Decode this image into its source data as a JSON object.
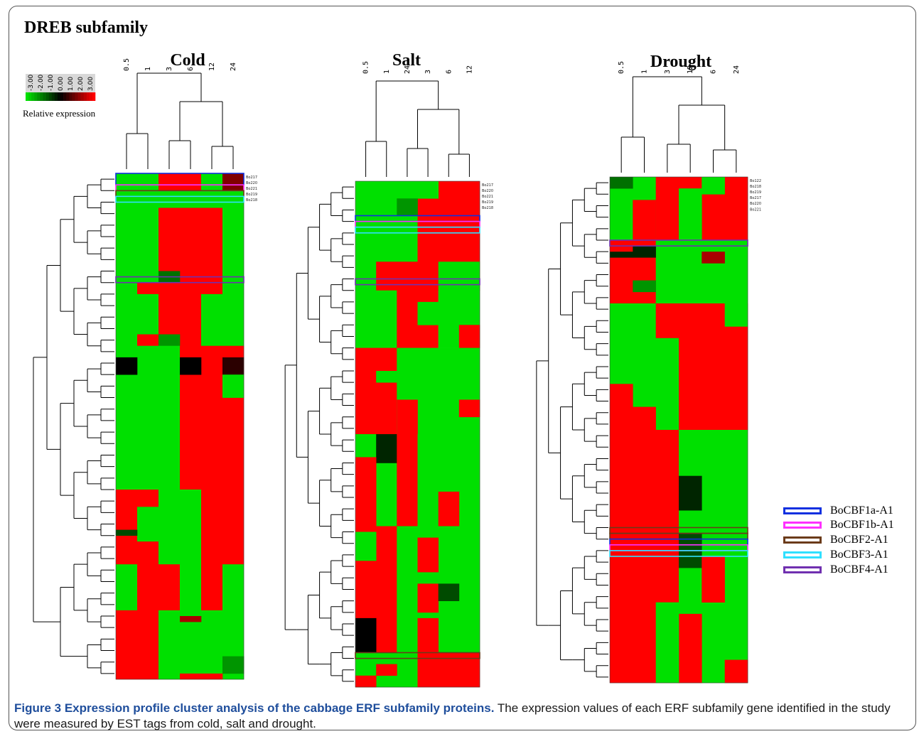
{
  "panel_title": "DREB subfamily",
  "scale": {
    "ticks": [
      "-3.00",
      "-2.00",
      "-1.00",
      "0.00",
      "1.00",
      "2.00",
      "3.00"
    ],
    "label": "Relative expression",
    "colors": {
      "low": "#00e000",
      "mid": "#000000",
      "high": "#ff0000"
    }
  },
  "legend": [
    {
      "label": "BoCBF1a-A1",
      "color": "#1030e0"
    },
    {
      "label": "BoCBF1b-A1",
      "color": "#ff30ff"
    },
    {
      "label": "BoCBF2-A1",
      "color": "#6b3b1a"
    },
    {
      "label": "BoCBF3-A1",
      "color": "#30e0ff"
    },
    {
      "label": "BoCBF4-A1",
      "color": "#7030b0"
    }
  ],
  "caption": {
    "bold": "Figure 3 Expression profile cluster analysis of the cabbage ERF subfamily proteins.",
    "text": " The expression values of each ERF subfamily gene identified in the study were measured by EST tags from cold, salt and drought."
  },
  "chart_data": [
    {
      "type": "heatmap",
      "title": "Cold",
      "columns": [
        "0.5",
        "1",
        "3",
        "6",
        "12",
        "24"
      ],
      "row_count": 88,
      "rows_shown": [
        "Bo217",
        "Bo220",
        "Bo221",
        "Bo219",
        "Bo218"
      ],
      "blocks": [
        {
          "r0": 0,
          "r1": 3,
          "c0": 0,
          "c1": 2,
          "v": -3
        },
        {
          "r0": 0,
          "r1": 3,
          "c0": 2,
          "c1": 4,
          "v": 3
        },
        {
          "r0": 0,
          "r1": 3,
          "c0": 4,
          "c1": 5,
          "v": -3
        },
        {
          "r0": 0,
          "r1": 3,
          "c0": 5,
          "c1": 6,
          "v": 1.5
        },
        {
          "r0": 3,
          "r1": 6,
          "c0": 0,
          "c1": 6,
          "v": -3
        },
        {
          "r0": 6,
          "r1": 21,
          "c0": 0,
          "c1": 2,
          "v": -3
        },
        {
          "r0": 6,
          "r1": 21,
          "c0": 2,
          "c1": 5,
          "v": 3
        },
        {
          "r0": 6,
          "r1": 21,
          "c0": 5,
          "c1": 6,
          "v": -3
        },
        {
          "r0": 17,
          "r1": 19,
          "c0": 2,
          "c1": 3,
          "v": -1.5
        },
        {
          "r0": 19,
          "r1": 21,
          "c0": 1,
          "c1": 2,
          "v": 3
        },
        {
          "r0": 21,
          "r1": 30,
          "c0": 0,
          "c1": 2,
          "v": -3
        },
        {
          "r0": 21,
          "r1": 30,
          "c0": 2,
          "c1": 4,
          "v": 3
        },
        {
          "r0": 21,
          "r1": 30,
          "c0": 4,
          "c1": 6,
          "v": -3
        },
        {
          "r0": 28,
          "r1": 30,
          "c0": 1,
          "c1": 2,
          "v": 3
        },
        {
          "r0": 28,
          "r1": 30,
          "c0": 2,
          "c1": 3,
          "v": -2
        },
        {
          "r0": 30,
          "r1": 55,
          "c0": 0,
          "c1": 3,
          "v": -3
        },
        {
          "r0": 30,
          "r1": 55,
          "c0": 3,
          "c1": 6,
          "v": 3
        },
        {
          "r0": 32,
          "r1": 35,
          "c0": 0,
          "c1": 1,
          "v": 0
        },
        {
          "r0": 32,
          "r1": 35,
          "c0": 3,
          "c1": 4,
          "v": 0
        },
        {
          "r0": 32,
          "r1": 35,
          "c0": 5,
          "c1": 6,
          "v": 0.5
        },
        {
          "r0": 35,
          "r1": 39,
          "c0": 5,
          "c1": 6,
          "v": -3
        },
        {
          "r0": 55,
          "r1": 68,
          "c0": 0,
          "c1": 1,
          "v": 3
        },
        {
          "r0": 55,
          "r1": 68,
          "c0": 1,
          "c1": 2,
          "v": 3
        },
        {
          "r0": 55,
          "r1": 68,
          "c0": 2,
          "c1": 5,
          "v": -3
        },
        {
          "r0": 55,
          "r1": 68,
          "c0": 4,
          "c1": 5,
          "v": 3
        },
        {
          "r0": 55,
          "r1": 68,
          "c0": 5,
          "c1": 6,
          "v": 3
        },
        {
          "r0": 58,
          "r1": 64,
          "c0": 1,
          "c1": 2,
          "v": -3
        },
        {
          "r0": 62,
          "r1": 63,
          "c0": 0,
          "c1": 1,
          "v": -1
        },
        {
          "r0": 68,
          "r1": 76,
          "c0": 0,
          "c1": 1,
          "v": -3
        },
        {
          "r0": 68,
          "r1": 76,
          "c0": 1,
          "c1": 3,
          "v": 3
        },
        {
          "r0": 68,
          "r1": 76,
          "c0": 3,
          "c1": 4,
          "v": -3
        },
        {
          "r0": 68,
          "r1": 76,
          "c0": 4,
          "c1": 5,
          "v": 3
        },
        {
          "r0": 68,
          "r1": 76,
          "c0": 5,
          "c1": 6,
          "v": -3
        },
        {
          "r0": 76,
          "r1": 88,
          "c0": 0,
          "c1": 2,
          "v": 3
        },
        {
          "r0": 76,
          "r1": 88,
          "c0": 2,
          "c1": 6,
          "v": -3
        },
        {
          "r0": 77,
          "r1": 78,
          "c0": 3,
          "c1": 4,
          "v": 2
        },
        {
          "r0": 84,
          "r1": 86,
          "c0": 2,
          "c1": 6,
          "v": -3
        },
        {
          "r0": 84,
          "r1": 87,
          "c0": 5,
          "c1": 6,
          "v": -2
        },
        {
          "r0": 87,
          "r1": 88,
          "c0": 3,
          "c1": 5,
          "v": 3
        }
      ]
    },
    {
      "type": "heatmap",
      "title": "Salt",
      "columns": [
        "0.5",
        "1",
        "24",
        "3",
        "6",
        "12"
      ],
      "row_count": 88,
      "rows_shown": [
        "Bo217",
        "Bo220",
        "Bo221",
        "Bo219",
        "Bo218"
      ],
      "blocks": [
        {
          "r0": 0,
          "r1": 14,
          "c0": 0,
          "c1": 3,
          "v": -3
        },
        {
          "r0": 0,
          "r1": 14,
          "c0": 3,
          "c1": 6,
          "v": 3
        },
        {
          "r0": 0,
          "r1": 3,
          "c0": 3,
          "c1": 4,
          "v": -3
        },
        {
          "r0": 3,
          "r1": 6,
          "c0": 2,
          "c1": 3,
          "v": -2
        },
        {
          "r0": 14,
          "r1": 19,
          "c0": 0,
          "c1": 1,
          "v": -3
        },
        {
          "r0": 14,
          "r1": 19,
          "c0": 1,
          "c1": 6,
          "v": 3
        },
        {
          "r0": 14,
          "r1": 19,
          "c0": 4,
          "c1": 6,
          "v": -3
        },
        {
          "r0": 19,
          "r1": 29,
          "c0": 0,
          "c1": 2,
          "v": -3
        },
        {
          "r0": 19,
          "r1": 29,
          "c0": 2,
          "c1": 4,
          "v": 3
        },
        {
          "r0": 19,
          "r1": 29,
          "c0": 4,
          "c1": 6,
          "v": -3
        },
        {
          "r0": 21,
          "r1": 25,
          "c0": 3,
          "c1": 4,
          "v": -3
        },
        {
          "r0": 25,
          "r1": 29,
          "c0": 5,
          "c1": 6,
          "v": 3
        },
        {
          "r0": 29,
          "r1": 44,
          "c0": 0,
          "c1": 2,
          "v": 3
        },
        {
          "r0": 29,
          "r1": 44,
          "c0": 2,
          "c1": 6,
          "v": -3
        },
        {
          "r0": 33,
          "r1": 35,
          "c0": 1,
          "c1": 2,
          "v": -3
        },
        {
          "r0": 38,
          "r1": 44,
          "c0": 2,
          "c1": 3,
          "v": 3
        },
        {
          "r0": 38,
          "r1": 41,
          "c0": 5,
          "c1": 6,
          "v": 3
        },
        {
          "r0": 44,
          "r1": 60,
          "c0": 0,
          "c1": 2,
          "v": -3
        },
        {
          "r0": 44,
          "r1": 49,
          "c0": 1,
          "c1": 2,
          "v": -0.5
        },
        {
          "r0": 48,
          "r1": 60,
          "c0": 0,
          "c1": 1,
          "v": 3
        },
        {
          "r0": 44,
          "r1": 60,
          "c0": 2,
          "c1": 4,
          "v": 3
        },
        {
          "r0": 44,
          "r1": 60,
          "c0": 3,
          "c1": 6,
          "v": -3
        },
        {
          "r0": 54,
          "r1": 60,
          "c0": 4,
          "c1": 5,
          "v": 3
        },
        {
          "r0": 60,
          "r1": 82,
          "c0": 0,
          "c1": 2,
          "v": 3
        },
        {
          "r0": 60,
          "r1": 82,
          "c0": 2,
          "c1": 3,
          "v": -3
        },
        {
          "r0": 60,
          "r1": 82,
          "c0": 3,
          "c1": 6,
          "v": -3
        },
        {
          "r0": 61,
          "r1": 66,
          "c0": 0,
          "c1": 1,
          "v": -3
        },
        {
          "r0": 62,
          "r1": 68,
          "c0": 3,
          "c1": 4,
          "v": 3
        },
        {
          "r0": 70,
          "r1": 75,
          "c0": 3,
          "c1": 4,
          "v": 3
        },
        {
          "r0": 70,
          "r1": 73,
          "c0": 4,
          "c1": 5,
          "v": -1
        },
        {
          "r0": 76,
          "r1": 82,
          "c0": 0,
          "c1": 1,
          "v": 0
        },
        {
          "r0": 76,
          "r1": 82,
          "c0": 3,
          "c1": 4,
          "v": 3
        },
        {
          "r0": 82,
          "r1": 88,
          "c0": 0,
          "c1": 3,
          "v": -3
        },
        {
          "r0": 82,
          "r1": 88,
          "c0": 3,
          "c1": 6,
          "v": 3
        },
        {
          "r0": 84,
          "r1": 86,
          "c0": 1,
          "c1": 2,
          "v": 3
        },
        {
          "r0": 86,
          "r1": 88,
          "c0": 0,
          "c1": 1,
          "v": 3
        }
      ]
    },
    {
      "type": "heatmap",
      "title": "Drought",
      "columns": [
        "0.5",
        "1",
        "3",
        "12",
        "6",
        "24"
      ],
      "row_count": 88,
      "rows_shown": [
        "Bo122",
        "Bo218",
        "Bo219",
        "Bo217",
        "Bo220",
        "Bo221"
      ],
      "blocks": [
        {
          "r0": 0,
          "r1": 11,
          "c0": 0,
          "c1": 2,
          "v": -3
        },
        {
          "r0": 0,
          "r1": 11,
          "c0": 2,
          "c1": 4,
          "v": 3
        },
        {
          "r0": 0,
          "r1": 11,
          "c0": 4,
          "c1": 6,
          "v": 3
        },
        {
          "r0": 0,
          "r1": 2,
          "c0": 0,
          "c1": 1,
          "v": -1.5
        },
        {
          "r0": 2,
          "r1": 11,
          "c0": 3,
          "c1": 4,
          "v": -3
        },
        {
          "r0": 0,
          "r1": 3,
          "c0": 4,
          "c1": 5,
          "v": -3
        },
        {
          "r0": 4,
          "r1": 11,
          "c0": 1,
          "c1": 2,
          "v": 3
        },
        {
          "r0": 11,
          "r1": 22,
          "c0": 0,
          "c1": 2,
          "v": 3
        },
        {
          "r0": 11,
          "r1": 22,
          "c0": 2,
          "c1": 6,
          "v": -3
        },
        {
          "r0": 12,
          "r1": 14,
          "c0": 1,
          "c1": 2,
          "v": -0.5
        },
        {
          "r0": 13,
          "r1": 14,
          "c0": 0,
          "c1": 1,
          "v": -0.5
        },
        {
          "r0": 13,
          "r1": 15,
          "c0": 4,
          "c1": 5,
          "v": 2
        },
        {
          "r0": 18,
          "r1": 20,
          "c0": 1,
          "c1": 2,
          "v": -2
        },
        {
          "r0": 22,
          "r1": 44,
          "c0": 0,
          "c1": 2,
          "v": -3
        },
        {
          "r0": 22,
          "r1": 44,
          "c0": 2,
          "c1": 3,
          "v": -3
        },
        {
          "r0": 22,
          "r1": 44,
          "c0": 3,
          "c1": 6,
          "v": 3
        },
        {
          "r0": 22,
          "r1": 28,
          "c0": 2,
          "c1": 3,
          "v": 3
        },
        {
          "r0": 26,
          "r1": 44,
          "c0": 5,
          "c1": 6,
          "v": 3
        },
        {
          "r0": 22,
          "r1": 26,
          "c0": 5,
          "c1": 6,
          "v": -3
        },
        {
          "r0": 36,
          "r1": 44,
          "c0": 0,
          "c1": 1,
          "v": 3
        },
        {
          "r0": 40,
          "r1": 44,
          "c0": 1,
          "c1": 2,
          "v": 3
        },
        {
          "r0": 44,
          "r1": 88,
          "c0": 0,
          "c1": 3,
          "v": 3
        },
        {
          "r0": 44,
          "r1": 88,
          "c0": 3,
          "c1": 6,
          "v": -3
        },
        {
          "r0": 52,
          "r1": 58,
          "c0": 3,
          "c1": 4,
          "v": -0.5
        },
        {
          "r0": 62,
          "r1": 68,
          "c0": 3,
          "c1": 4,
          "v": -1
        },
        {
          "r0": 66,
          "r1": 74,
          "c0": 4,
          "c1": 5,
          "v": 3
        },
        {
          "r0": 76,
          "r1": 88,
          "c0": 3,
          "c1": 4,
          "v": 3
        },
        {
          "r0": 74,
          "r1": 88,
          "c0": 2,
          "c1": 3,
          "v": -3
        },
        {
          "r0": 84,
          "r1": 88,
          "c0": 5,
          "c1": 6,
          "v": 3
        }
      ]
    }
  ]
}
